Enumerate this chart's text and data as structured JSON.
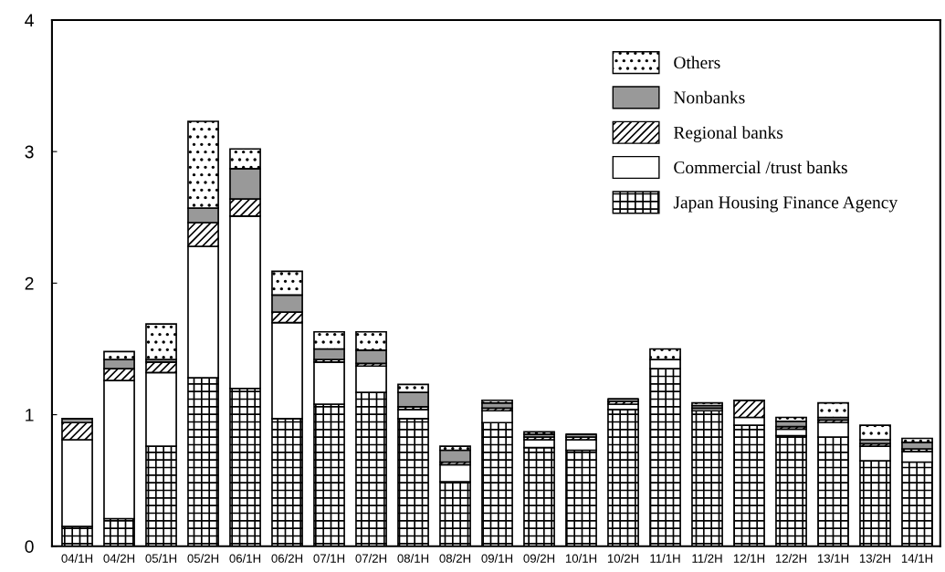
{
  "chart_data": {
    "type": "bar",
    "stacked": true,
    "categories": [
      "04/1H",
      "04/2H",
      "05/1H",
      "05/2H",
      "06/1H",
      "06/2H",
      "07/1H",
      "07/2H",
      "08/1H",
      "08/2H",
      "09/1H",
      "09/2H",
      "10/1H",
      "10/2H",
      "11/1H",
      "11/2H",
      "12/1H",
      "12/2H",
      "13/1H",
      "13/2H",
      "14/1H"
    ],
    "series": [
      {
        "name": "Japan Housing Finance Agency",
        "color": "#000000",
        "values": [
          0.15,
          0.21,
          0.76,
          1.28,
          1.2,
          0.97,
          1.08,
          1.17,
          0.97,
          0.49,
          0.94,
          0.75,
          0.73,
          1.04,
          1.35,
          1.03,
          0.92,
          0.84,
          0.83,
          0.65,
          0.64
        ]
      },
      {
        "name": "Commercial /trust banks",
        "color": "#ffffff",
        "values": [
          0.66,
          1.05,
          0.56,
          1.0,
          1.31,
          0.73,
          0.32,
          0.2,
          0.07,
          0.13,
          0.09,
          0.06,
          0.08,
          0.04,
          0.07,
          0.02,
          0.06,
          0.05,
          0.11,
          0.11,
          0.08
        ]
      },
      {
        "name": "Regional banks",
        "color": "#000000",
        "values": [
          0.13,
          0.09,
          0.08,
          0.18,
          0.13,
          0.08,
          0.02,
          0.02,
          0.02,
          0.02,
          0.02,
          0.02,
          0.02,
          0.02,
          0,
          0,
          0.13,
          0.02,
          0.02,
          0.02,
          0.02
        ]
      },
      {
        "name": "Nonbanks",
        "color": "#999999",
        "values": [
          0.03,
          0.07,
          0.02,
          0.11,
          0.23,
          0.13,
          0.08,
          0.1,
          0.11,
          0.09,
          0.04,
          0.02,
          0.02,
          0.02,
          0,
          0.02,
          0,
          0.04,
          0.02,
          0.03,
          0.05
        ]
      },
      {
        "name": "Others",
        "color": "#000000",
        "values": [
          0,
          0.06,
          0.27,
          0.66,
          0.15,
          0.18,
          0.13,
          0.14,
          0.06,
          0.03,
          0.02,
          0.02,
          0,
          0,
          0.08,
          0.02,
          0,
          0.03,
          0.11,
          0.11,
          0.03
        ]
      }
    ],
    "ylim": [
      0,
      4
    ],
    "yticks": [
      0,
      1,
      2,
      3,
      4
    ],
    "grid": false,
    "legend": "top right"
  }
}
